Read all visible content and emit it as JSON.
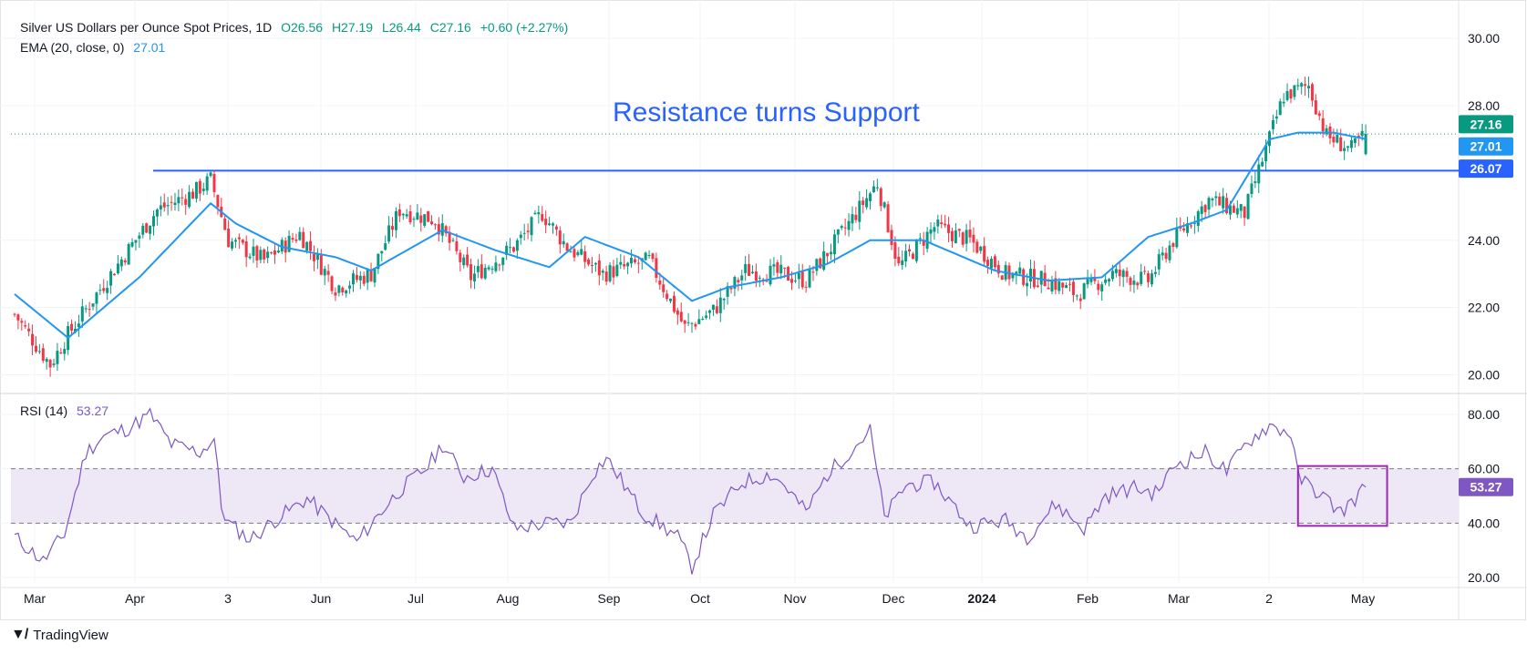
{
  "header": {
    "title": "Silver US Dollars per Ounce Spot Prices, 1D",
    "open": "O26.56",
    "high": "H27.19",
    "low": "L26.44",
    "close": "C27.16",
    "change": "+0.60 (+2.27%)",
    "ema_label": "EMA (20, close, 0)",
    "ema_value": "27.01",
    "rsi_label": "RSI (14)",
    "rsi_value": "53.27"
  },
  "annotation": "Resistance turns Support",
  "brand": "TradingView",
  "colors": {
    "up": "#089981",
    "down": "#f23645",
    "ema": "#2196f3",
    "rsi": "#7e57c2",
    "support_line": "#2962ff",
    "last_price": "#089981",
    "band_fill": "#ede7f6"
  },
  "chart_data": [
    {
      "type": "candlestick",
      "title": "Silver US Dollars per Ounce Spot Prices, 1D",
      "ylim": [
        19.5,
        30.6
      ],
      "y_ticks": [
        "30.00",
        "28.00",
        "24.00",
        "22.00",
        "20.00"
      ],
      "x_ticks": [
        "Mar",
        "Apr",
        "3",
        "Jun",
        "Jul",
        "Aug",
        "Sep",
        "Oct",
        "Nov",
        "Dec",
        "2024",
        "Feb",
        "Mar",
        "2",
        "May"
      ],
      "price_labels": {
        "last": "27.16",
        "ema": "27.01",
        "support": "26.07"
      },
      "support_level": 26.07,
      "last_price": 27.16,
      "anchors": [
        [
          0,
          21.8
        ],
        [
          10,
          20.3
        ],
        [
          15,
          21.2
        ],
        [
          25,
          22.7
        ],
        [
          40,
          24.9
        ],
        [
          50,
          25.4
        ],
        [
          55,
          25.8
        ],
        [
          60,
          24.0
        ],
        [
          70,
          23.4
        ],
        [
          80,
          24.2
        ],
        [
          90,
          22.6
        ],
        [
          100,
          23.0
        ],
        [
          108,
          24.9
        ],
        [
          118,
          24.6
        ],
        [
          128,
          22.9
        ],
        [
          140,
          23.8
        ],
        [
          148,
          24.8
        ],
        [
          155,
          23.8
        ],
        [
          165,
          23.0
        ],
        [
          178,
          23.4
        ],
        [
          188,
          21.4
        ],
        [
          196,
          21.9
        ],
        [
          205,
          23.1
        ],
        [
          215,
          23.0
        ],
        [
          222,
          22.8
        ],
        [
          232,
          24.2
        ],
        [
          242,
          25.7
        ],
        [
          248,
          23.2
        ],
        [
          258,
          24.4
        ],
        [
          268,
          24.0
        ],
        [
          278,
          23.0
        ],
        [
          290,
          22.8
        ],
        [
          298,
          22.4
        ],
        [
          308,
          23.0
        ],
        [
          318,
          22.8
        ],
        [
          325,
          24.0
        ],
        [
          335,
          25.2
        ],
        [
          345,
          24.8
        ],
        [
          356,
          28.3
        ],
        [
          363,
          28.6
        ],
        [
          368,
          27.1
        ],
        [
          375,
          26.7
        ],
        [
          379,
          27.16
        ]
      ],
      "ema": [
        [
          0,
          22.4
        ],
        [
          15,
          21.1
        ],
        [
          35,
          22.9
        ],
        [
          55,
          25.1
        ],
        [
          62,
          24.5
        ],
        [
          75,
          23.8
        ],
        [
          90,
          23.5
        ],
        [
          100,
          23.1
        ],
        [
          120,
          24.3
        ],
        [
          135,
          23.7
        ],
        [
          150,
          23.2
        ],
        [
          160,
          24.1
        ],
        [
          175,
          23.5
        ],
        [
          190,
          22.2
        ],
        [
          200,
          22.6
        ],
        [
          215,
          22.9
        ],
        [
          228,
          23.3
        ],
        [
          240,
          24.0
        ],
        [
          255,
          24.0
        ],
        [
          275,
          23.1
        ],
        [
          290,
          22.8
        ],
        [
          305,
          22.9
        ],
        [
          318,
          24.1
        ],
        [
          330,
          24.5
        ],
        [
          340,
          24.9
        ],
        [
          352,
          27.0
        ],
        [
          360,
          27.2
        ],
        [
          370,
          27.2
        ],
        [
          379,
          27.01
        ]
      ]
    },
    {
      "type": "line",
      "title": "RSI (14)",
      "ylim": [
        18,
        85
      ],
      "y_ticks": [
        "80.00",
        "60.00",
        "40.00",
        "20.00"
      ],
      "band": [
        40,
        60
      ],
      "last_value": "53.27",
      "anchors": [
        [
          0,
          35
        ],
        [
          8,
          26
        ],
        [
          14,
          36
        ],
        [
          20,
          66
        ],
        [
          25,
          72
        ],
        [
          32,
          75
        ],
        [
          38,
          80
        ],
        [
          44,
          69
        ],
        [
          52,
          66
        ],
        [
          56,
          71
        ],
        [
          58,
          46
        ],
        [
          60,
          40
        ],
        [
          66,
          34
        ],
        [
          74,
          42
        ],
        [
          82,
          49
        ],
        [
          88,
          42
        ],
        [
          96,
          33
        ],
        [
          102,
          43
        ],
        [
          108,
          52
        ],
        [
          116,
          61
        ],
        [
          120,
          69
        ],
        [
          126,
          57
        ],
        [
          134,
          60
        ],
        [
          140,
          38
        ],
        [
          150,
          40
        ],
        [
          156,
          40
        ],
        [
          162,
          58
        ],
        [
          166,
          64
        ],
        [
          176,
          44
        ],
        [
          186,
          35
        ],
        [
          190,
          24
        ],
        [
          196,
          43
        ],
        [
          204,
          55
        ],
        [
          212,
          58
        ],
        [
          216,
          54
        ],
        [
          222,
          44
        ],
        [
          228,
          58
        ],
        [
          234,
          66
        ],
        [
          240,
          74
        ],
        [
          244,
          42
        ],
        [
          250,
          54
        ],
        [
          258,
          55
        ],
        [
          268,
          39
        ],
        [
          278,
          41
        ],
        [
          284,
          35
        ],
        [
          292,
          47
        ],
        [
          300,
          38
        ],
        [
          306,
          50
        ],
        [
          314,
          53
        ],
        [
          320,
          51
        ],
        [
          326,
          62
        ],
        [
          334,
          66
        ],
        [
          340,
          59
        ],
        [
          346,
          70
        ],
        [
          352,
          76
        ],
        [
          358,
          73
        ],
        [
          360,
          57
        ],
        [
          366,
          51
        ],
        [
          372,
          44
        ],
        [
          376,
          49
        ],
        [
          379,
          53.27
        ]
      ],
      "highlight_box": {
        "x_range": [
          360,
          385
        ],
        "y_range": [
          39,
          61
        ]
      }
    }
  ]
}
